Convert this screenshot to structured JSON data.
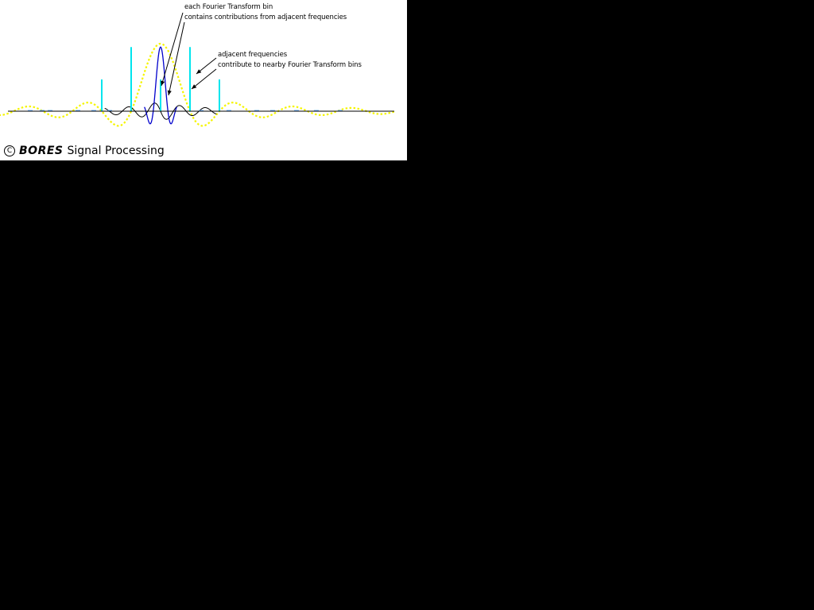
{
  "annotations": {
    "bin": {
      "line1": "each Fourier Transform bin",
      "line2": "contains contributions from adjacent frequencies"
    },
    "adjacent": {
      "line1": "adjacent frequencies",
      "line2": "contribute to nearby Fourier Transform bins"
    }
  },
  "brand": {
    "symbol": "C",
    "name": "BORES",
    "tail": "Signal Processing"
  },
  "colors": {
    "background": "#000000",
    "panel": "#ffffff",
    "spectral_lines": "#00e5ee",
    "dotted_sinc": "#f5f500",
    "sinc_black": "#000000",
    "main_lobe": "#0000cc",
    "ticks": "#6fb3ff"
  },
  "icons": [
    "copyright-icon",
    "arrow-icon"
  ],
  "chart_data": {
    "type": "line",
    "spectral_lines": {
      "x": [
        -4,
        -2,
        0,
        2,
        4
      ],
      "y": [
        0.47,
        0.95,
        0.47,
        0.95,
        0.47
      ]
    },
    "series": [
      {
        "style": "dotted-yellow",
        "function": "sinc",
        "center": 0,
        "peak": 1.0
      },
      {
        "style": "solid-black",
        "function": "sinc",
        "center": 0,
        "peak": -0.15
      },
      {
        "style": "solid-blue",
        "function": "sinc",
        "center": 0,
        "peak": 0.95
      }
    ],
    "xlim": [
      -11.3,
      14.5
    ],
    "ylim": [
      -0.35,
      1.5
    ],
    "grid": false
  }
}
